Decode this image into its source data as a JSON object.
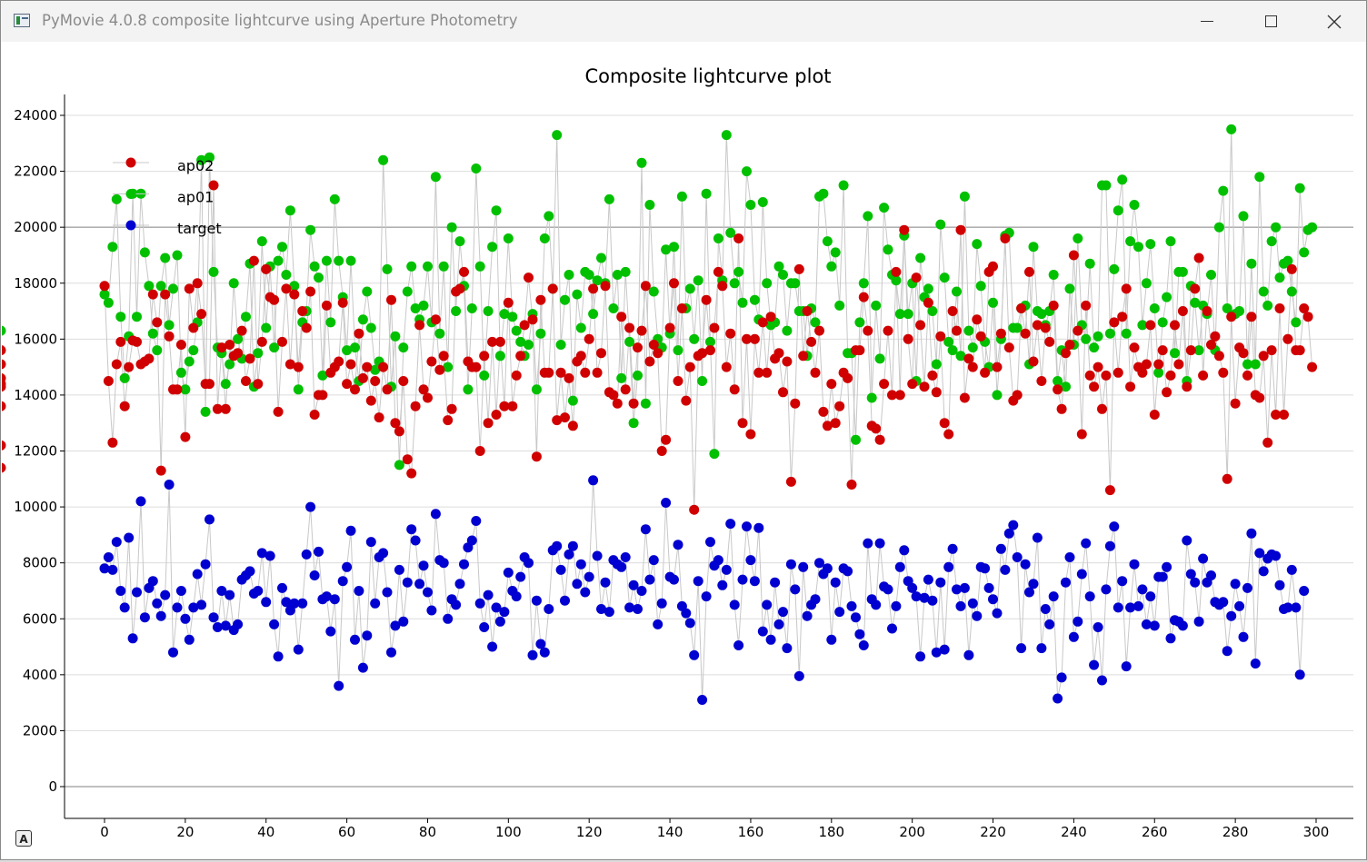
{
  "window": {
    "title": "PyMovie 4.0.8 composite lightcurve using Aperture Photometry",
    "controls": {
      "minimize": "minimize-icon",
      "maximize": "maximize-icon",
      "close": "close-icon"
    }
  },
  "autoscale_label": "A",
  "chart_data": {
    "type": "scatter",
    "title": "Composite lightcurve plot",
    "xlabel": "",
    "ylabel": "",
    "xlim": [
      -10,
      310
    ],
    "ylim": [
      -1100,
      24600
    ],
    "x_ticks": [
      0,
      20,
      40,
      60,
      80,
      100,
      120,
      140,
      160,
      180,
      200,
      220,
      240,
      260,
      280,
      300
    ],
    "y_ticks": [
      0,
      2000,
      4000,
      6000,
      8000,
      10000,
      12000,
      14000,
      16000,
      18000,
      20000,
      22000,
      24000
    ],
    "grid": "horizontal",
    "legend_position": "top-left",
    "connect_lines_color": "#c8c8c8",
    "x": {
      "start": 0,
      "end": 299,
      "step": 1
    },
    "series": [
      {
        "name": "ap02",
        "color": "#d00000",
        "values": [
          17900,
          14500,
          12300,
          15100,
          15900,
          13600,
          15000,
          15950,
          15900,
          15100,
          15200,
          15300,
          17600,
          16600,
          11300,
          17600,
          16100,
          14200,
          14200,
          15800,
          12500,
          17800,
          16400,
          18000,
          16900,
          14400,
          14400,
          21500,
          13500,
          15700,
          13500,
          15800,
          15400,
          15500,
          16300,
          14500,
          15300,
          18800,
          14400,
          15900,
          18500,
          17500,
          17400,
          13400,
          15900,
          17800,
          15100,
          17600,
          15000,
          17000,
          16400,
          17700,
          13300,
          14000,
          14000,
          17200,
          14800,
          15000,
          15200,
          17300,
          14400,
          15100,
          14200,
          16200,
          14600,
          15000,
          13800,
          14500,
          13200,
          15000,
          14200,
          17400,
          13000,
          12700,
          14500,
          11700,
          11200,
          13600,
          16500,
          14200,
          13900,
          15200,
          16700,
          14900,
          15400,
          13100,
          13500,
          17700,
          17800,
          18400,
          15200,
          15000,
          15000,
          12000,
          15400,
          13000,
          15900,
          13300,
          15900,
          13600,
          17300,
          13600,
          14700,
          15400,
          16500,
          18200,
          16700,
          11800,
          17400,
          14800,
          14800,
          17800,
          13100,
          14800,
          13200,
          14600,
          12900,
          15200,
          15400,
          14800,
          16000,
          17800,
          14800,
          15500,
          17900,
          14100,
          14000,
          13700,
          16800,
          14200,
          16400,
          13700,
          15700,
          16300,
          17900,
          15200,
          15800,
          15500,
          12000,
          12400,
          16400,
          18000,
          14500,
          17100,
          13800,
          15000,
          9900,
          15400,
          15500,
          17400,
          15600,
          16400,
          18400,
          17900,
          15000,
          16200,
          14200,
          19600,
          13000,
          16000,
          12600,
          16000,
          14800,
          16600,
          14800,
          16800,
          15300,
          15500,
          14100,
          15200,
          10900,
          13700,
          18500,
          15400,
          17000,
          15900,
          14800,
          16300,
          13400,
          12900,
          14400,
          13000,
          13600,
          14800,
          14600,
          10800,
          15600,
          15600,
          17500,
          16300,
          12900,
          12800,
          12400,
          14400,
          16300,
          14000,
          18400,
          14000,
          19900,
          16000,
          14400,
          18200,
          16500,
          14300,
          17300,
          14700,
          14100,
          16100,
          13000,
          12600,
          17000,
          16300,
          19900,
          13900,
          15300,
          15000,
          16700,
          16100,
          14800,
          18400,
          18600,
          15000,
          16200,
          19600,
          15700,
          13800,
          14000,
          17100,
          16200,
          18400,
          15200,
          16500,
          14500,
          16400,
          15900,
          17200,
          14200,
          13500,
          15500,
          15800,
          19000,
          16300,
          12600,
          17200,
          14700,
          14300,
          15000,
          13500,
          14700,
          10600,
          16600,
          14800,
          16800,
          17800,
          14300,
          15700,
          15000,
          14800,
          15100,
          16500,
          13300,
          15100,
          15600,
          14100,
          14700,
          16500,
          15100,
          17000,
          14300,
          15600,
          17800,
          18900,
          14700,
          17000,
          15800,
          16100,
          15400,
          14800,
          11000,
          16800,
          13700,
          15700,
          15500,
          14700,
          16800,
          14000,
          13900,
          15400,
          12300,
          15600,
          13300,
          17100,
          13300,
          16000,
          18500,
          15600,
          15600,
          17100,
          16800,
          15000,
          15100,
          12200,
          14600,
          14300,
          14400,
          15600,
          13600,
          11400
        ]
      },
      {
        "name": "ap01",
        "color": "#00c000",
        "values": [
          17600,
          17300,
          19300,
          21000,
          16800,
          14600,
          16100,
          21200,
          16800,
          21200,
          19100,
          17900,
          16200,
          15600,
          17900,
          18900,
          16500,
          17800,
          19000,
          14800,
          14200,
          15200,
          15600,
          16600,
          22400,
          13400,
          22500,
          18400,
          15700,
          15500,
          14400,
          15100,
          18000,
          16000,
          15300,
          16800,
          18700,
          14300,
          15500,
          19500,
          16400,
          18600,
          15700,
          18800,
          19300,
          18300,
          20600,
          17900,
          14200,
          16600,
          17000,
          19900,
          18600,
          18200,
          14700,
          18800,
          16600,
          21000,
          18800,
          17500,
          15600,
          18800,
          15700,
          14500,
          16700,
          17700,
          16400,
          14900,
          15200,
          22400,
          18500,
          14300,
          16100,
          11500,
          15700,
          17700,
          18600,
          17100,
          16700,
          17200,
          18600,
          16600,
          21800,
          16200,
          18600,
          15000,
          20000,
          17000,
          19500,
          17900,
          14200,
          17100,
          22100,
          18600,
          14700,
          17000,
          19300,
          20600,
          15400,
          16900,
          19600,
          16800,
          16300,
          15900,
          15400,
          15800,
          16900,
          14200,
          16200,
          19600,
          20400,
          17800,
          23300,
          15800,
          17400,
          18300,
          13800,
          17600,
          16400,
          18400,
          18300,
          16900,
          18100,
          18900,
          18000,
          21000,
          17100,
          18300,
          14600,
          18400,
          15900,
          13000,
          14700,
          22300,
          13700,
          20800,
          17700,
          16000,
          15700,
          19200,
          16200,
          19300,
          15600,
          21100,
          17100,
          17800,
          16000,
          18100,
          14500,
          21200,
          15900,
          11900,
          19600,
          18100,
          23300,
          19800,
          18000,
          18400,
          17300,
          22000,
          20800,
          17400,
          16700,
          20900,
          18000,
          16500,
          16600,
          18600,
          18300,
          16300,
          18000,
          18000,
          17000,
          17000,
          15400,
          17100,
          16600,
          21100,
          21200,
          19500,
          18600,
          19100,
          17200,
          21500,
          15500,
          15500,
          12400,
          16600,
          18000,
          20400,
          13900,
          17200,
          15300,
          20700,
          19200,
          18300,
          18100,
          16900,
          19700,
          16900,
          18000,
          14500,
          18900,
          17500,
          17800,
          17000,
          15100,
          20100,
          18200,
          15900,
          15600,
          17700,
          15400,
          21100,
          16300,
          15700,
          19400,
          17900,
          15900,
          15000,
          17300,
          14000,
          16000,
          19700,
          19800,
          16400,
          16400,
          17100,
          17200,
          15100,
          19300,
          17000,
          16900,
          16500,
          17000,
          18300,
          14500,
          15600,
          14300,
          17800,
          15800,
          19600,
          16500,
          16000,
          18700,
          15700,
          16100,
          21500,
          21500,
          16200,
          18500,
          20600,
          21700,
          16200,
          19500,
          20800,
          19300,
          16500,
          18000,
          19400,
          17100,
          14800,
          16600,
          17500,
          19500,
          15500,
          18400,
          18400,
          14500,
          17900,
          17300,
          15600,
          17200,
          16900,
          18300,
          15600,
          20000,
          21300,
          17100,
          23500,
          16900,
          17000,
          20400,
          15100,
          18700,
          15100,
          21800,
          17700,
          17200,
          19500,
          20000,
          18200,
          18700,
          18800,
          17700,
          16600,
          21400,
          19100,
          19900,
          20000,
          16300
        ]
      },
      {
        "name": "target",
        "color": "#0000d0",
        "values": [
          7800,
          8200,
          7750,
          8750,
          7000,
          6400,
          8900,
          5300,
          6950,
          10200,
          6050,
          7100,
          7350,
          6550,
          6100,
          6850,
          10800,
          4800,
          6400,
          7000,
          6000,
          5250,
          6400,
          7600,
          6500,
          7950,
          9550,
          6050,
          5700,
          7000,
          5750,
          6850,
          5600,
          5800,
          7400,
          7550,
          7700,
          6900,
          7000,
          8350,
          6600,
          8250,
          5800,
          4650,
          7100,
          6600,
          6300,
          6550,
          4900,
          6550,
          8300,
          10000,
          7550,
          8400,
          6700,
          6800,
          5550,
          6700,
          3600,
          7350,
          7850,
          9150,
          5250,
          7000,
          4250,
          5400,
          8750,
          6550,
          8200,
          8350,
          6950,
          4800,
          5750,
          7750,
          5900,
          7300,
          9200,
          8800,
          7250,
          7900,
          6950,
          6300,
          9750,
          8100,
          8000,
          6000,
          6700,
          6500,
          7250,
          7950,
          8550,
          8800,
          9500,
          6550,
          5700,
          6850,
          5000,
          6400,
          5900,
          6250,
          7650,
          7000,
          6800,
          7500,
          8200,
          8000,
          4700,
          6650,
          5100,
          4800,
          6350,
          8450,
          8600,
          7750,
          6650,
          8300,
          8600,
          7250,
          7950,
          6950,
          7500,
          10950,
          8250,
          6350,
          7300,
          6250,
          8100,
          7950,
          7850,
          8200,
          6400,
          7200,
          6350,
          7000,
          9200,
          7400,
          8100,
          5800,
          6550,
          10150,
          7500,
          7400,
          8650,
          6450,
          6200,
          5850,
          4700,
          7350,
          3100,
          6800,
          8750,
          7900,
          8100,
          7200,
          7750,
          9400,
          6500,
          5050,
          7400,
          9300,
          8100,
          7350,
          9250,
          5550,
          6500,
          5250,
          7300,
          5800,
          6250,
          4950,
          7950,
          7050,
          3950,
          7850,
          6100,
          6500,
          6700,
          8000,
          7600,
          7800,
          5250,
          7300,
          6250,
          7800,
          7700,
          6450,
          6050,
          5450,
          5050,
          8700,
          6700,
          6500,
          8700,
          7150,
          7050,
          5650,
          6450,
          7850,
          8450,
          7350,
          7100,
          6800,
          4650,
          6750,
          7400,
          6650,
          4800,
          7300,
          4900,
          7850,
          8500,
          7050,
          6450,
          7100,
          4700,
          6550,
          6100,
          7850,
          7800,
          7100,
          6700,
          6200,
          8500,
          7750,
          9050,
          9350,
          8200,
          4950,
          7950,
          6950,
          7250,
          8900,
          4950,
          6350,
          5800,
          6800,
          3150,
          3900,
          7300,
          8200,
          5350,
          5900,
          7600,
          8700,
          6800,
          4350,
          5700,
          3800,
          7050,
          8600,
          9300,
          6400,
          7350,
          4300,
          6400,
          7950,
          6450,
          7050,
          5800,
          6800,
          5750,
          7500,
          7500,
          7850,
          5300,
          5950,
          5900,
          5750,
          8800,
          7600,
          7300,
          5900,
          8150,
          7300,
          7550,
          6600,
          6500,
          6600,
          4850,
          6100,
          7250,
          6450,
          5350,
          7100,
          9050,
          4400,
          8350,
          7700,
          8150,
          8300,
          8250,
          7200,
          6350,
          6400,
          7750,
          6400,
          4000,
          7000
        ]
      }
    ]
  }
}
